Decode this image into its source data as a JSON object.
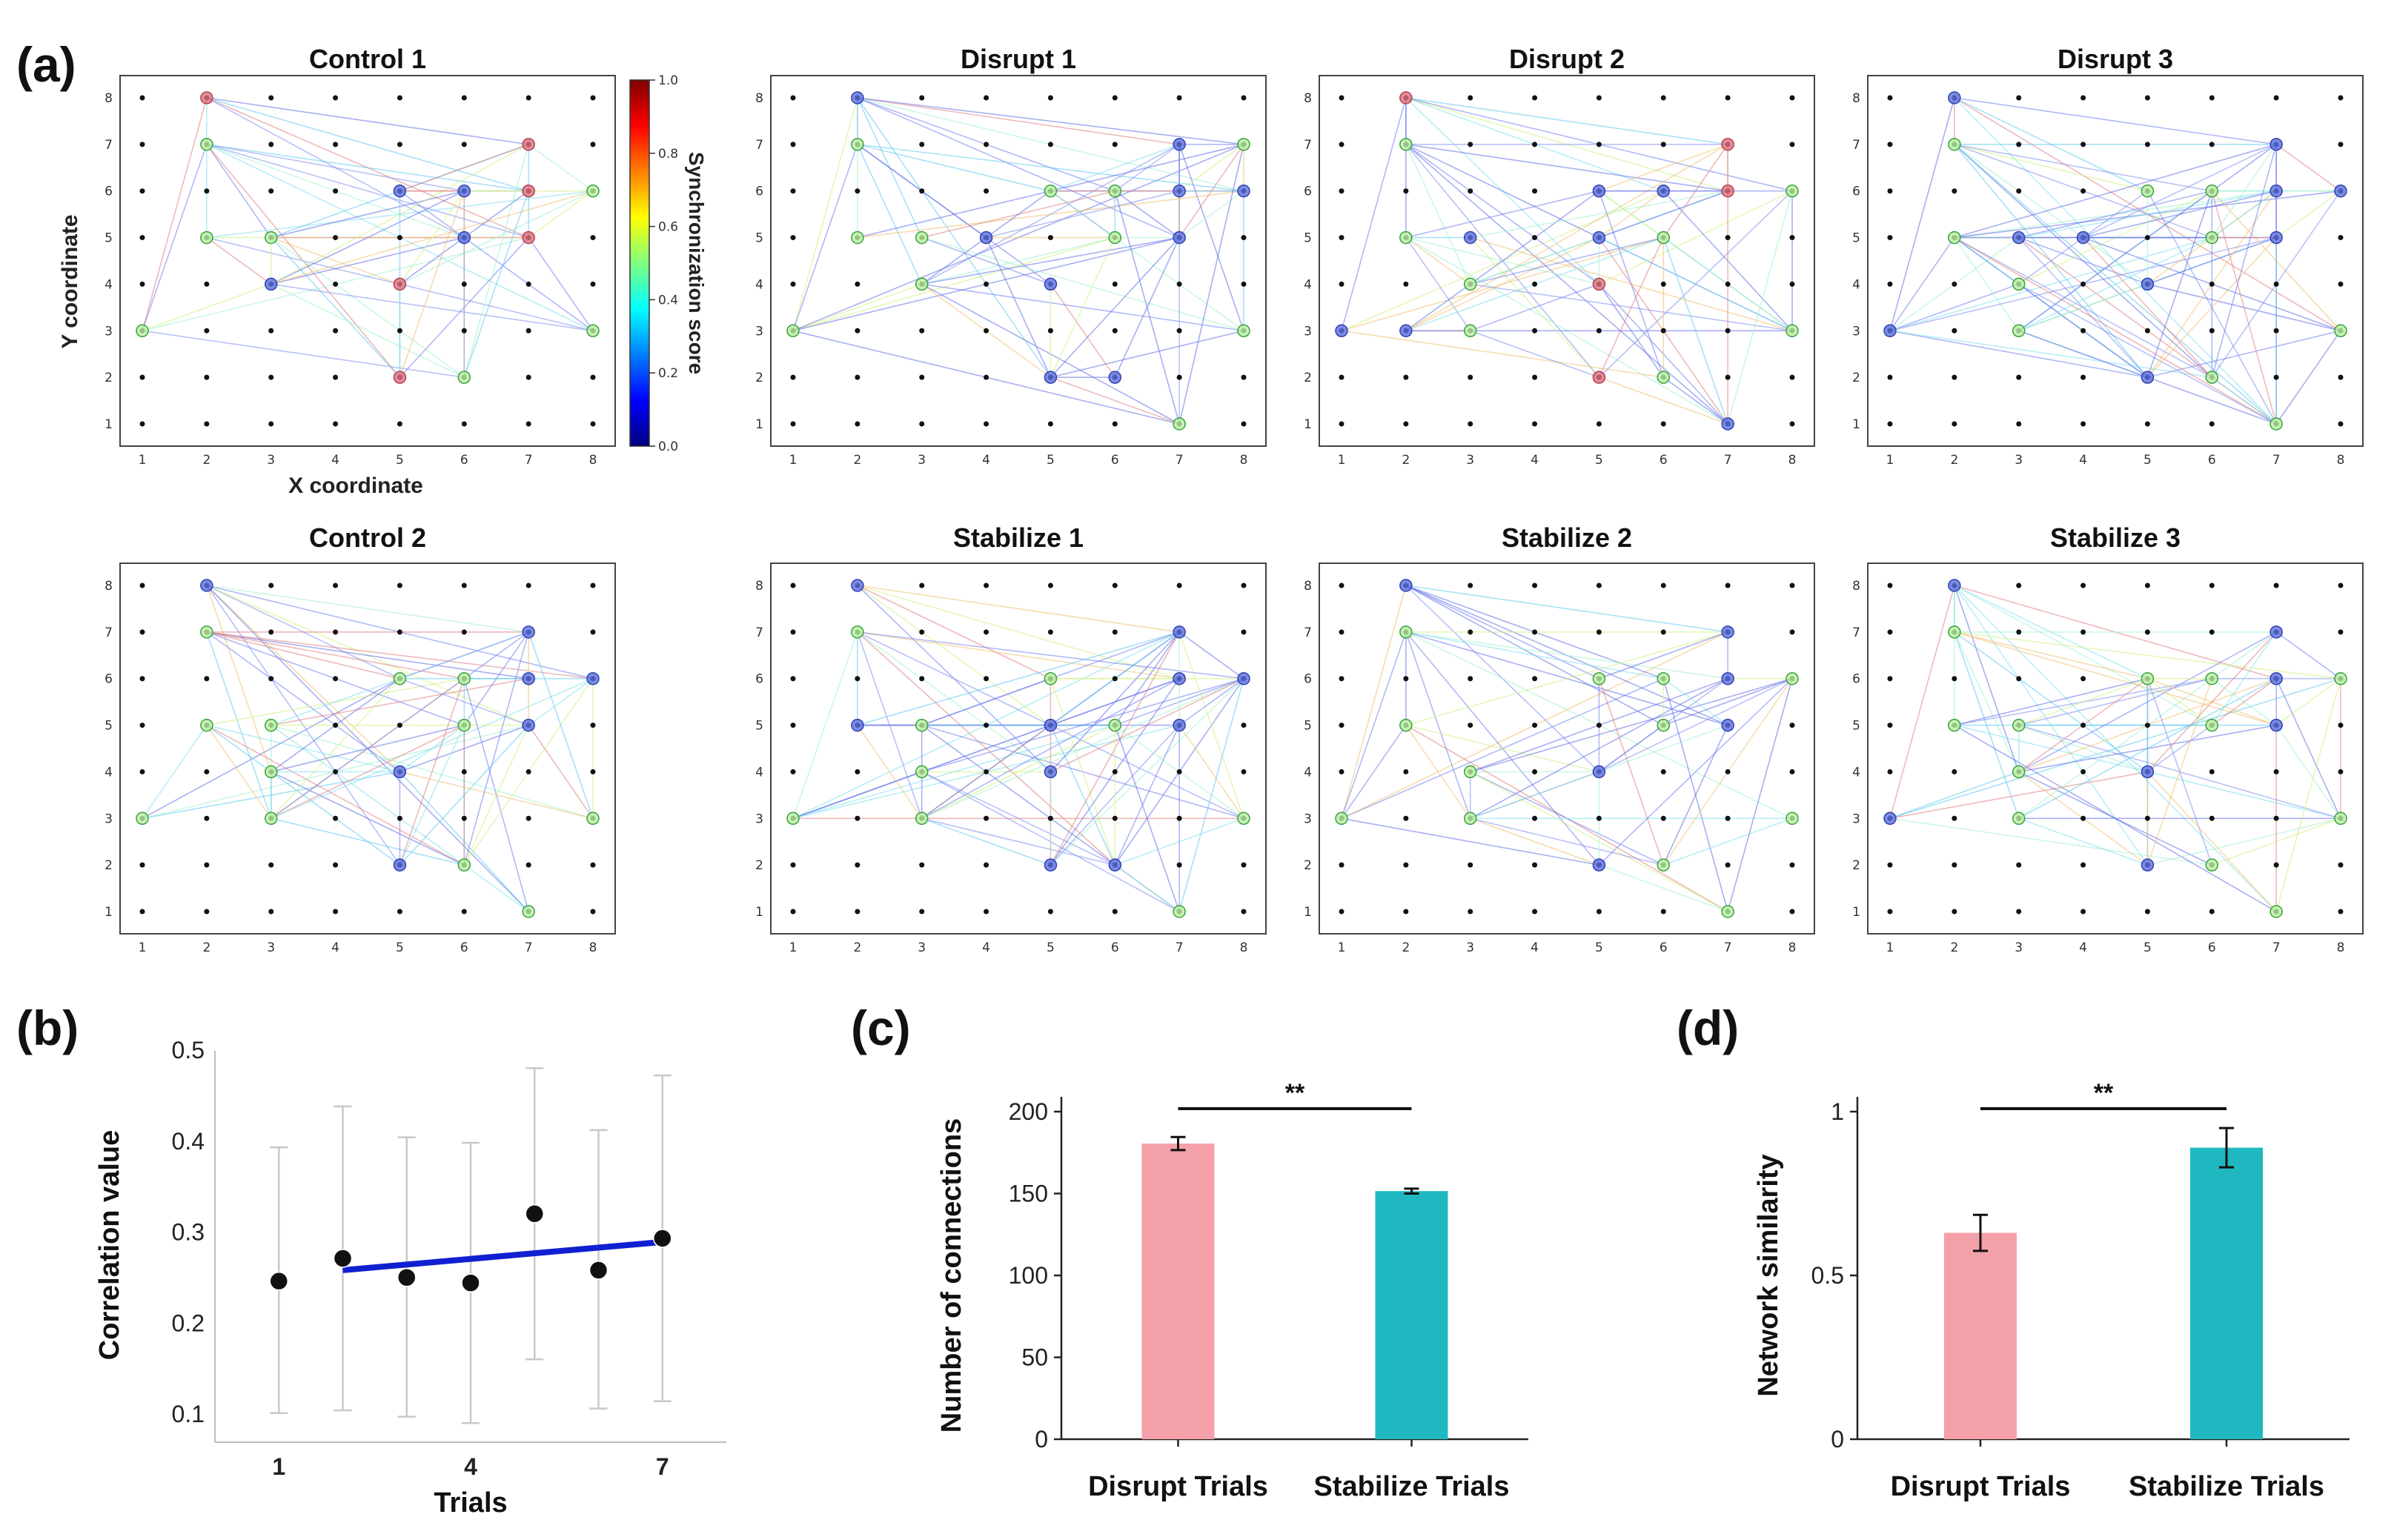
{
  "panel_labels": {
    "a": "(a)",
    "b": "(b)",
    "c": "(c)",
    "d": "(d)"
  },
  "network_panel": {
    "x_label": "X coordinate",
    "y_label": "Y coordinate",
    "grid_ticks": [
      "1",
      "2",
      "3",
      "4",
      "5",
      "6",
      "7",
      "8"
    ],
    "colorbar": {
      "label": "Synchronization score",
      "ticks": [
        "0.0",
        "0.2",
        "0.4",
        "0.6",
        "0.8",
        "1.0"
      ],
      "stops": [
        "#00007f",
        "#0000ff",
        "#007fff",
        "#00ffff",
        "#7fff7f",
        "#ffff00",
        "#ff7f00",
        "#ff0000",
        "#7f0000"
      ]
    },
    "colors": {
      "blue_node": "#5b6fe0",
      "green_node": "#b8f0a0",
      "red_node": "#e07080",
      "dot": "#111111"
    },
    "networks": [
      {
        "title": "Control 1",
        "nodes": [
          [
            1,
            3,
            "g"
          ],
          [
            2,
            8,
            "r"
          ],
          [
            2,
            7,
            "g"
          ],
          [
            2,
            5,
            "g"
          ],
          [
            3,
            5,
            "g"
          ],
          [
            3,
            4,
            "b"
          ],
          [
            5,
            6,
            "b"
          ],
          [
            5,
            4,
            "r"
          ],
          [
            5,
            2,
            "r"
          ],
          [
            6,
            6,
            "b"
          ],
          [
            6,
            5,
            "b"
          ],
          [
            6,
            2,
            "g"
          ],
          [
            7,
            7,
            "r"
          ],
          [
            7,
            6,
            "r"
          ],
          [
            7,
            5,
            "r"
          ],
          [
            8,
            6,
            "g"
          ],
          [
            8,
            3,
            "g"
          ]
        ]
      },
      {
        "title": "Disrupt 1",
        "nodes": [
          [
            1,
            3,
            "g"
          ],
          [
            2,
            8,
            "b"
          ],
          [
            2,
            7,
            "g"
          ],
          [
            2,
            5,
            "g"
          ],
          [
            3,
            5,
            "g"
          ],
          [
            3,
            4,
            "g"
          ],
          [
            4,
            5,
            "b"
          ],
          [
            5,
            6,
            "g"
          ],
          [
            5,
            4,
            "b"
          ],
          [
            5,
            2,
            "b"
          ],
          [
            6,
            6,
            "g"
          ],
          [
            6,
            5,
            "g"
          ],
          [
            6,
            2,
            "b"
          ],
          [
            7,
            7,
            "b"
          ],
          [
            7,
            6,
            "b"
          ],
          [
            7,
            5,
            "b"
          ],
          [
            7,
            1,
            "g"
          ],
          [
            8,
            7,
            "g"
          ],
          [
            8,
            6,
            "b"
          ],
          [
            8,
            3,
            "g"
          ]
        ]
      },
      {
        "title": "Disrupt 2",
        "nodes": [
          [
            1,
            3,
            "b"
          ],
          [
            2,
            8,
            "r"
          ],
          [
            2,
            7,
            "g"
          ],
          [
            2,
            5,
            "g"
          ],
          [
            2,
            3,
            "b"
          ],
          [
            3,
            5,
            "b"
          ],
          [
            3,
            4,
            "g"
          ],
          [
            3,
            3,
            "g"
          ],
          [
            5,
            6,
            "b"
          ],
          [
            5,
            5,
            "b"
          ],
          [
            5,
            4,
            "r"
          ],
          [
            5,
            2,
            "r"
          ],
          [
            6,
            6,
            "b"
          ],
          [
            6,
            5,
            "g"
          ],
          [
            6,
            2,
            "g"
          ],
          [
            7,
            7,
            "r"
          ],
          [
            7,
            6,
            "r"
          ],
          [
            7,
            1,
            "b"
          ],
          [
            8,
            6,
            "g"
          ],
          [
            8,
            3,
            "g"
          ]
        ]
      },
      {
        "title": "Disrupt 3",
        "nodes": [
          [
            1,
            3,
            "b"
          ],
          [
            2,
            8,
            "b"
          ],
          [
            2,
            7,
            "g"
          ],
          [
            2,
            5,
            "g"
          ],
          [
            3,
            5,
            "b"
          ],
          [
            3,
            4,
            "g"
          ],
          [
            3,
            3,
            "g"
          ],
          [
            4,
            5,
            "b"
          ],
          [
            5,
            6,
            "g"
          ],
          [
            5,
            4,
            "b"
          ],
          [
            5,
            2,
            "b"
          ],
          [
            6,
            6,
            "g"
          ],
          [
            6,
            5,
            "g"
          ],
          [
            6,
            2,
            "g"
          ],
          [
            7,
            7,
            "b"
          ],
          [
            7,
            6,
            "b"
          ],
          [
            7,
            5,
            "b"
          ],
          [
            7,
            1,
            "g"
          ],
          [
            8,
            6,
            "b"
          ],
          [
            8,
            3,
            "g"
          ]
        ]
      },
      {
        "title": "Control 2",
        "nodes": [
          [
            1,
            3,
            "g"
          ],
          [
            2,
            8,
            "b"
          ],
          [
            2,
            7,
            "g"
          ],
          [
            2,
            5,
            "g"
          ],
          [
            3,
            5,
            "g"
          ],
          [
            3,
            4,
            "g"
          ],
          [
            3,
            3,
            "g"
          ],
          [
            5,
            6,
            "g"
          ],
          [
            5,
            4,
            "b"
          ],
          [
            5,
            2,
            "b"
          ],
          [
            6,
            6,
            "g"
          ],
          [
            6,
            5,
            "g"
          ],
          [
            6,
            2,
            "g"
          ],
          [
            7,
            7,
            "b"
          ],
          [
            7,
            6,
            "b"
          ],
          [
            7,
            5,
            "b"
          ],
          [
            7,
            1,
            "g"
          ],
          [
            8,
            6,
            "b"
          ],
          [
            8,
            3,
            "g"
          ]
        ]
      },
      {
        "title": "Stabilize 1",
        "nodes": [
          [
            1,
            3,
            "g"
          ],
          [
            2,
            8,
            "b"
          ],
          [
            2,
            7,
            "g"
          ],
          [
            2,
            5,
            "b"
          ],
          [
            3,
            5,
            "g"
          ],
          [
            3,
            4,
            "g"
          ],
          [
            3,
            3,
            "g"
          ],
          [
            5,
            6,
            "g"
          ],
          [
            5,
            5,
            "b"
          ],
          [
            5,
            4,
            "b"
          ],
          [
            5,
            2,
            "b"
          ],
          [
            6,
            5,
            "g"
          ],
          [
            6,
            2,
            "b"
          ],
          [
            7,
            7,
            "b"
          ],
          [
            7,
            6,
            "b"
          ],
          [
            7,
            5,
            "b"
          ],
          [
            7,
            1,
            "g"
          ],
          [
            8,
            6,
            "b"
          ],
          [
            8,
            3,
            "g"
          ]
        ]
      },
      {
        "title": "Stabilize 2",
        "nodes": [
          [
            1,
            3,
            "g"
          ],
          [
            2,
            8,
            "b"
          ],
          [
            2,
            7,
            "g"
          ],
          [
            2,
            5,
            "g"
          ],
          [
            3,
            4,
            "g"
          ],
          [
            3,
            3,
            "g"
          ],
          [
            5,
            6,
            "g"
          ],
          [
            5,
            4,
            "b"
          ],
          [
            5,
            2,
            "b"
          ],
          [
            6,
            6,
            "g"
          ],
          [
            6,
            5,
            "g"
          ],
          [
            6,
            2,
            "g"
          ],
          [
            7,
            7,
            "b"
          ],
          [
            7,
            6,
            "b"
          ],
          [
            7,
            5,
            "b"
          ],
          [
            7,
            1,
            "g"
          ],
          [
            8,
            6,
            "g"
          ],
          [
            8,
            3,
            "g"
          ]
        ]
      },
      {
        "title": "Stabilize 3",
        "nodes": [
          [
            1,
            3,
            "b"
          ],
          [
            2,
            8,
            "b"
          ],
          [
            2,
            7,
            "g"
          ],
          [
            2,
            5,
            "g"
          ],
          [
            3,
            5,
            "g"
          ],
          [
            3,
            4,
            "g"
          ],
          [
            3,
            3,
            "g"
          ],
          [
            5,
            6,
            "g"
          ],
          [
            5,
            4,
            "b"
          ],
          [
            5,
            2,
            "b"
          ],
          [
            6,
            6,
            "g"
          ],
          [
            6,
            5,
            "g"
          ],
          [
            6,
            2,
            "g"
          ],
          [
            7,
            7,
            "b"
          ],
          [
            7,
            6,
            "b"
          ],
          [
            7,
            5,
            "b"
          ],
          [
            7,
            1,
            "g"
          ],
          [
            8,
            6,
            "g"
          ],
          [
            8,
            3,
            "g"
          ]
        ]
      }
    ]
  },
  "chart_data": [
    {
      "type": "scatter",
      "id": "b",
      "title": "",
      "xlabel": "Trials",
      "ylabel": "Correlation value",
      "xlim": [
        0.0,
        8.0
      ],
      "ylim": [
        0.07,
        0.5
      ],
      "xticks": [
        "1",
        "4",
        "7"
      ],
      "xtick_values": [
        1,
        4,
        7
      ],
      "yticks": [
        "0.1",
        "0.2",
        "0.3",
        "0.4",
        "0.5"
      ],
      "ytick_values": [
        0.1,
        0.2,
        0.3,
        0.4,
        0.5
      ],
      "x": [
        1,
        2,
        3,
        4,
        5,
        6,
        7
      ],
      "values": [
        0.247,
        0.272,
        0.251,
        0.245,
        0.321,
        0.259,
        0.294
      ],
      "err_low": [
        0.102,
        0.105,
        0.098,
        0.091,
        0.161,
        0.107,
        0.115
      ],
      "err_high": [
        0.394,
        0.439,
        0.405,
        0.399,
        0.481,
        0.413,
        0.473
      ],
      "trend": {
        "x": [
          2,
          7
        ],
        "y": [
          0.259,
          0.29
        ]
      },
      "colors": {
        "point": "#111111",
        "err": "#c8c8c8",
        "trend": "#1020d0"
      }
    },
    {
      "type": "bar",
      "id": "c",
      "ylabel": "Number of connections",
      "categories": [
        "Disrupt Trials",
        "Stabilize Trials"
      ],
      "values": [
        180.5,
        151.5
      ],
      "errors": [
        4.0,
        1.5
      ],
      "ylim": [
        0,
        200
      ],
      "yticks": [
        "0",
        "50",
        "100",
        "150",
        "200"
      ],
      "ytick_values": [
        0,
        50,
        100,
        150,
        200
      ],
      "significance": "**",
      "colors": [
        "#f4a0a8",
        "#1fb8c0"
      ]
    },
    {
      "type": "bar",
      "id": "d",
      "ylabel": "Network similarity",
      "categories": [
        "Disrupt Trials",
        "Stabilize Trials"
      ],
      "values": [
        0.63,
        0.89
      ],
      "errors": [
        0.055,
        0.06
      ],
      "ylim": [
        0,
        1.0
      ],
      "yticks": [
        "0",
        "0.5",
        "1"
      ],
      "ytick_values": [
        0,
        0.5,
        1.0
      ],
      "significance": "**",
      "colors": [
        "#f4a0a8",
        "#1fb8c0"
      ]
    }
  ]
}
